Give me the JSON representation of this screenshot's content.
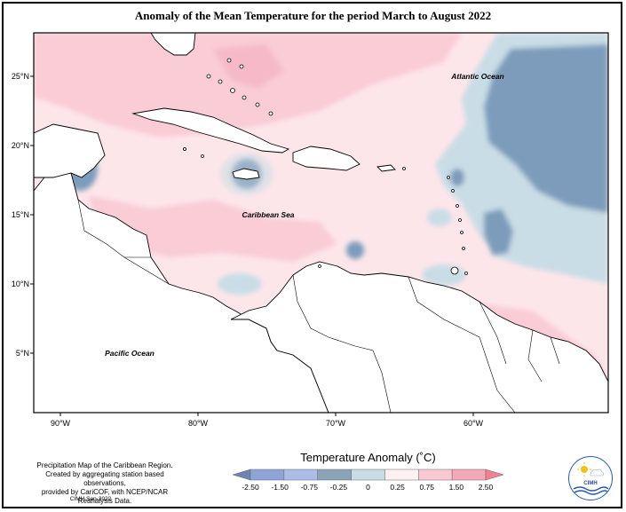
{
  "title": "Anomaly of the Mean Temperature for the period March to August 2022",
  "map": {
    "lat_ticks": [
      {
        "value": 25,
        "label": "25°N"
      },
      {
        "value": 20,
        "label": "20°N"
      },
      {
        "value": 15,
        "label": "15°N"
      },
      {
        "value": 10,
        "label": "10°N"
      },
      {
        "value": 5,
        "label": "5°N"
      }
    ],
    "lon_ticks": [
      {
        "value": -90,
        "label": "90°W"
      },
      {
        "value": -80,
        "label": "80°W"
      },
      {
        "value": -70,
        "label": "70°W"
      },
      {
        "value": -60,
        "label": "60°W"
      }
    ],
    "labels": {
      "atlantic": "Atlantic Ocean",
      "caribbean": "Caribbean Sea",
      "pacific": "Pacific Ocean"
    },
    "colors": {
      "land": "#ffffff",
      "pos_light": "#fde6ea",
      "pos_mid": "#f9ccd6",
      "neg_light": "#c9dde6",
      "neg_mid": "#7d9cbb",
      "neg_dark": "#5f7ea6"
    }
  },
  "legend": {
    "title": "Temperature Anomaly (˚C)",
    "ticks": [
      "-2.50",
      "-1.50",
      "-0.75",
      "-0.25",
      "0",
      "0.25",
      "0.75",
      "1.50",
      "2.50"
    ],
    "colors": [
      "#6e84b8",
      "#8ea3d6",
      "#a9bde6",
      "#8aa3b8",
      "#c7dde3",
      "#fdf0f2",
      "#f8c8d3",
      "#f5a9b8",
      "#f47f92"
    ]
  },
  "caption": {
    "line1": "Precipitation Map of the Caribbean Region.",
    "line2": "Created by aggregating station based observations,",
    "line3": "provided by CariCOF, with NCEP/NCAR Reanalysis Data.",
    "credit": "CIMH Sep-2022"
  },
  "logo": {
    "text": "CIMH"
  }
}
